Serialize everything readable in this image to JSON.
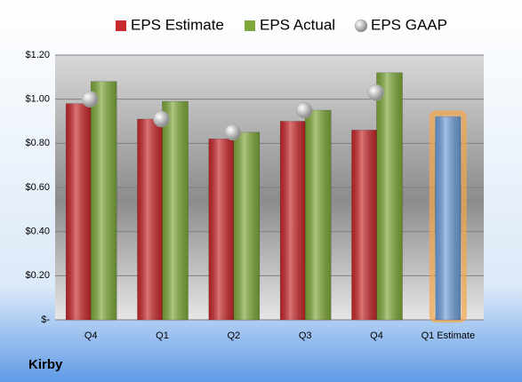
{
  "chart_data": {
    "type": "bar",
    "categories": [
      "Q4",
      "Q1",
      "Q2",
      "Q3",
      "Q4",
      "Q1 Estimate"
    ],
    "series": [
      {
        "name": "EPS Estimate",
        "color": "#c8282b",
        "last_color": "#6f9fd8",
        "values": [
          0.98,
          0.91,
          0.82,
          0.9,
          0.86,
          0.92
        ]
      },
      {
        "name": "EPS Actual",
        "color": "#7fa83a",
        "values": [
          1.08,
          0.99,
          0.85,
          0.95,
          1.12,
          null
        ]
      },
      {
        "name": "EPS GAAP",
        "color": "#a9a9a9",
        "marker": "circle",
        "values": [
          1.0,
          0.91,
          0.85,
          0.95,
          1.03,
          null
        ]
      }
    ],
    "ylim": [
      0,
      1.2
    ],
    "yticks": [
      {
        "value": 0,
        "label": "$-"
      },
      {
        "value": 0.2,
        "label": "$0.20"
      },
      {
        "value": 0.4,
        "label": "$0.40"
      },
      {
        "value": 0.6,
        "label": "$0.60"
      },
      {
        "value": 0.8,
        "label": "$0.80"
      },
      {
        "value": 1.0,
        "label": "$1.00"
      },
      {
        "value": 1.2,
        "label": "$1.20"
      }
    ],
    "grid": true,
    "legend": "top",
    "footer": "Kirby"
  }
}
